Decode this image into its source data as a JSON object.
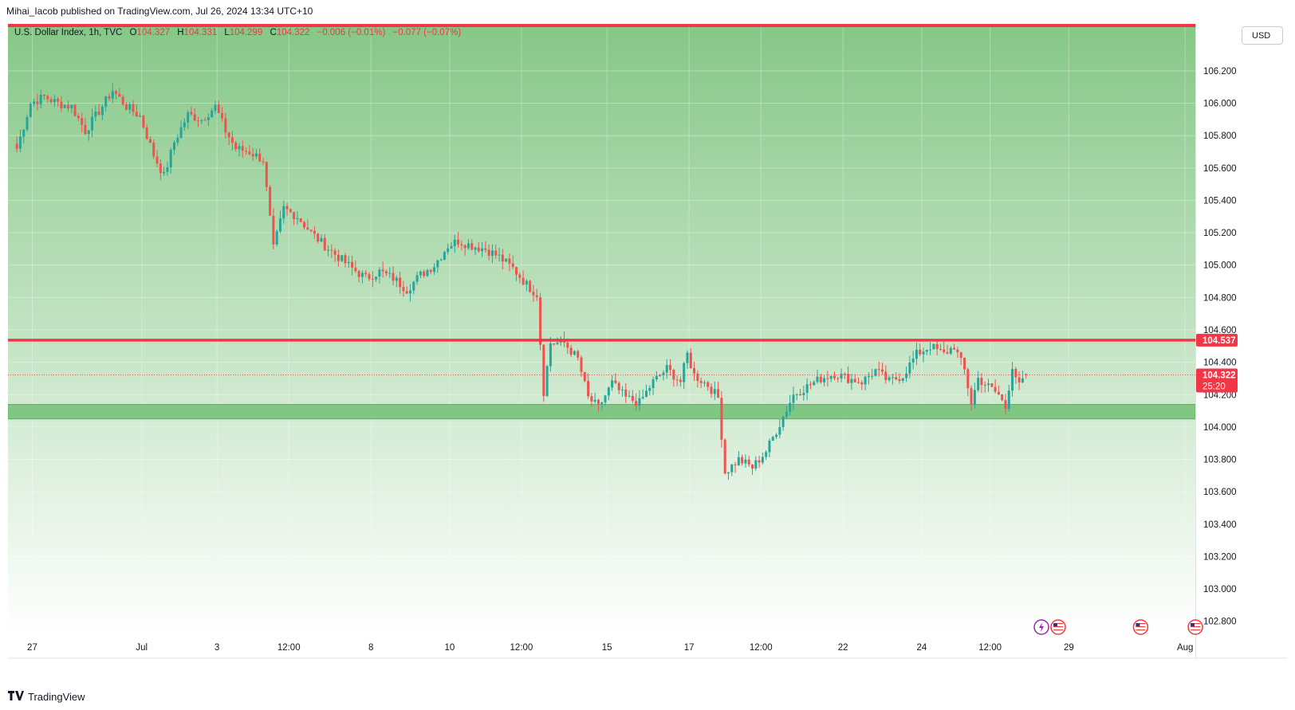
{
  "header": {
    "published_text": "Mihai_Iacob published on TradingView.com, Jul 26, 2024 13:34 UTC+10"
  },
  "legend": {
    "symbol": "U.S. Dollar Index, 1h, TVC",
    "o_label": "O",
    "o_value": "104.327",
    "h_label": "H",
    "h_value": "104.331",
    "l_label": "L",
    "l_value": "104.299",
    "c_label": "C",
    "c_value": "104.322",
    "change": "−0.006 (−0.01%)",
    "change2": "−0.077 (−0.07%)"
  },
  "currency_button": "USD",
  "footer": {
    "brand": "TradingView",
    "logo_icon": "tradingview-logo-icon"
  },
  "colors": {
    "bg_top": "#85c786",
    "bg_bottom": "#ffffff",
    "up_candle": "#26a69a",
    "down_candle": "#ef5350",
    "resistance_line": "#f23645",
    "support_zone": "#81c784",
    "price_tag": "#f23645"
  },
  "chart_data": {
    "type": "candlestick",
    "symbol": "U.S. Dollar Index",
    "interval": "1h",
    "ylim": [
      102.72,
      106.49
    ],
    "y_ticks": [
      102.8,
      103.0,
      103.2,
      103.4,
      103.6,
      103.8,
      104.0,
      104.2,
      104.4,
      104.6,
      104.8,
      105.0,
      105.2,
      105.4,
      105.6,
      105.8,
      106.0,
      106.2
    ],
    "y_tick_labels": [
      "102.800",
      "103.000",
      "103.200",
      "103.400",
      "103.600",
      "103.800",
      "104.000",
      "104.200",
      "104.400",
      "104.600",
      "104.800",
      "105.000",
      "105.200",
      "105.400",
      "105.600",
      "105.800",
      "106.000",
      "106.200"
    ],
    "x_labels": [
      "27",
      "Jul",
      "3",
      "12:00",
      "8",
      "10",
      "12:00",
      "15",
      "17",
      "12:00",
      "22",
      "24",
      "12:00",
      "29",
      "Aug"
    ],
    "x_label_index": [
      5,
      37,
      59,
      80,
      104,
      127,
      148,
      173,
      197,
      218,
      242,
      265,
      285,
      308,
      342
    ],
    "bars_total": 362,
    "last_bar_index": 295,
    "close_anchors": [
      [
        0,
        105.72
      ],
      [
        4,
        106.0
      ],
      [
        8,
        106.04
      ],
      [
        12,
        106.0
      ],
      [
        16,
        105.98
      ],
      [
        20,
        105.83
      ],
      [
        24,
        105.95
      ],
      [
        28,
        106.08
      ],
      [
        32,
        105.98
      ],
      [
        36,
        105.92
      ],
      [
        40,
        105.68
      ],
      [
        43,
        105.55
      ],
      [
        46,
        105.76
      ],
      [
        50,
        105.93
      ],
      [
        54,
        105.9
      ],
      [
        58,
        105.98
      ],
      [
        61,
        105.83
      ],
      [
        64,
        105.72
      ],
      [
        68,
        105.7
      ],
      [
        72,
        105.65
      ],
      [
        75,
        105.1
      ],
      [
        78,
        105.35
      ],
      [
        82,
        105.3
      ],
      [
        86,
        105.2
      ],
      [
        90,
        105.12
      ],
      [
        94,
        105.05
      ],
      [
        98,
        104.98
      ],
      [
        102,
        104.92
      ],
      [
        106,
        104.96
      ],
      [
        110,
        104.92
      ],
      [
        114,
        104.85
      ],
      [
        118,
        104.94
      ],
      [
        122,
        105.0
      ],
      [
        126,
        105.12
      ],
      [
        129,
        105.15
      ],
      [
        133,
        105.12
      ],
      [
        137,
        105.1
      ],
      [
        141,
        105.05
      ],
      [
        145,
        104.98
      ],
      [
        149,
        104.88
      ],
      [
        152,
        104.82
      ],
      [
        154,
        104.22
      ],
      [
        156,
        104.52
      ],
      [
        160,
        104.52
      ],
      [
        164,
        104.42
      ],
      [
        167,
        104.18
      ],
      [
        170,
        104.12
      ],
      [
        174,
        104.27
      ],
      [
        178,
        104.18
      ],
      [
        182,
        104.15
      ],
      [
        186,
        104.28
      ],
      [
        190,
        104.36
      ],
      [
        194,
        104.28
      ],
      [
        196,
        104.45
      ],
      [
        198,
        104.32
      ],
      [
        202,
        104.26
      ],
      [
        205,
        104.18
      ],
      [
        207,
        103.72
      ],
      [
        211,
        103.8
      ],
      [
        215,
        103.75
      ],
      [
        219,
        103.85
      ],
      [
        223,
        104.02
      ],
      [
        227,
        104.2
      ],
      [
        231,
        104.25
      ],
      [
        235,
        104.3
      ],
      [
        239,
        104.33
      ],
      [
        243,
        104.3
      ],
      [
        247,
        104.28
      ],
      [
        251,
        104.35
      ],
      [
        255,
        104.28
      ],
      [
        259,
        104.32
      ],
      [
        263,
        104.45
      ],
      [
        267,
        104.5
      ],
      [
        271,
        104.45
      ],
      [
        274,
        104.5
      ],
      [
        277,
        104.35
      ],
      [
        279,
        104.15
      ],
      [
        281,
        104.3
      ],
      [
        284,
        104.25
      ],
      [
        287,
        104.2
      ],
      [
        289,
        104.12
      ],
      [
        291,
        104.38
      ],
      [
        293,
        104.25
      ],
      [
        295,
        104.32
      ]
    ],
    "last_bar_ohlc": {
      "open": 104.327,
      "high": 104.331,
      "low": 104.299,
      "close": 104.322
    },
    "resistance_top": 106.48,
    "resistance_line": 104.537,
    "support_zone": [
      104.05,
      104.14
    ],
    "current_price": 104.322,
    "countdown": "25:20",
    "resistance_label": "104.537",
    "current_label": "104.322",
    "economic_events": [
      {
        "bar": 300,
        "icons": [
          "lightning-event-icon",
          "us-flag-event-icon"
        ]
      },
      {
        "bar": 329,
        "icons": [
          "us-flag-event-icon"
        ]
      },
      {
        "bar": 345,
        "icons": [
          "us-flag-event-icon"
        ]
      }
    ]
  }
}
